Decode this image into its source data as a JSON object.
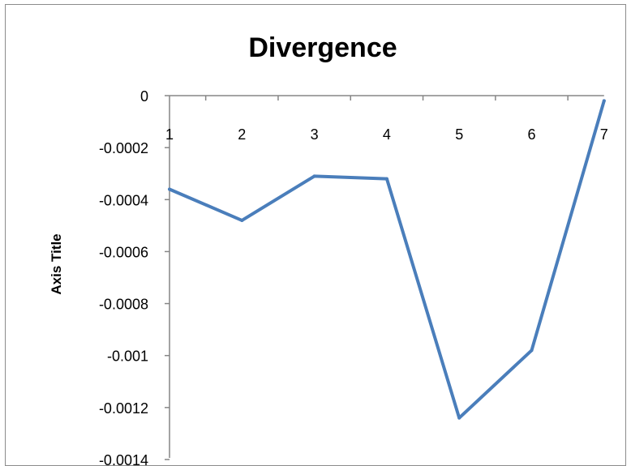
{
  "chart_data": {
    "type": "line",
    "title": "Divergence",
    "xlabel": "",
    "ylabel": "Axis Title",
    "categories": [
      "1",
      "2",
      "3",
      "4",
      "5",
      "6",
      "7"
    ],
    "series": [
      {
        "values": [
          -0.00036,
          -0.00048,
          -0.00031,
          -0.00032,
          -0.00124,
          -0.00098,
          -2e-05
        ]
      }
    ],
    "yticks": [
      "0",
      "-0.0002",
      "-0.0004",
      "-0.0006",
      "-0.0008",
      "-0.001",
      "-0.0012",
      "-0.0014"
    ],
    "ylim": [
      -0.0014,
      0
    ],
    "grid": false,
    "legend": "none",
    "colors": {
      "line": "#4a7ebb",
      "axis": "#868686"
    }
  }
}
